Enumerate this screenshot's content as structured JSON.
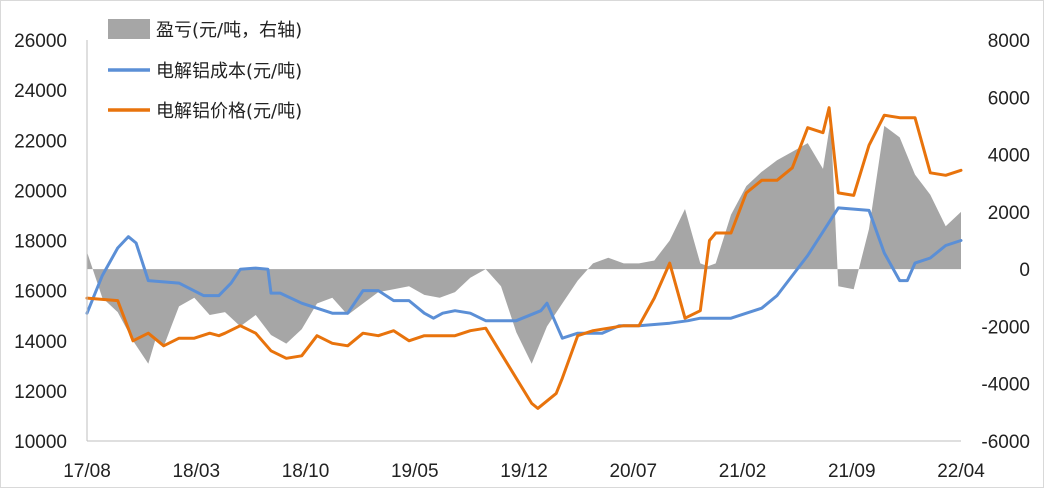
{
  "chart_data": {
    "type": "line",
    "legend": [
      {
        "label": "盈亏(元/吨，右轴)",
        "kind": "area",
        "color": "#a6a6a6"
      },
      {
        "label": "电解铝成本(元/吨)",
        "kind": "line",
        "color": "#5b8fd6"
      },
      {
        "label": "电解铝价格(元/吨)",
        "kind": "line",
        "color": "#e8730c"
      }
    ],
    "x_ticks": [
      "17/08",
      "18/03",
      "18/10",
      "19/05",
      "19/12",
      "20/07",
      "21/02",
      "21/09",
      "22/04"
    ],
    "y_left": {
      "ticks": [
        "10000",
        "12000",
        "14000",
        "16000",
        "18000",
        "20000",
        "22000",
        "24000",
        "26000"
      ],
      "min": 10000,
      "max": 26000
    },
    "y_right": {
      "ticks": [
        "-6000",
        "-4000",
        "-2000",
        "0",
        "2000",
        "4000",
        "6000",
        "8000"
      ],
      "min": -6000,
      "max": 8000
    },
    "x_range": [
      0,
      57
    ],
    "series": [
      {
        "name": "电解铝成本(元/吨)",
        "axis": "left",
        "color": "#5b8fd6",
        "x": [
          0,
          1,
          2,
          2.7,
          3.2,
          4,
          6,
          7.6,
          8.6,
          9.4,
          10,
          11,
          11.8,
          12,
          12.6,
          14,
          16,
          17,
          18,
          19,
          20,
          21,
          22,
          22.6,
          23.2,
          24,
          25,
          26,
          28,
          29.6,
          30,
          31,
          32,
          33.6,
          34.7,
          36,
          37,
          38,
          39.2,
          40,
          42,
          44,
          45,
          47,
          49,
          51,
          52,
          53,
          53.5,
          54,
          55,
          56,
          57
        ],
        "values": [
          15100,
          16600,
          17700,
          18150,
          17900,
          16400,
          16300,
          15800,
          15800,
          16300,
          16850,
          16900,
          16850,
          15900,
          15900,
          15500,
          15100,
          15100,
          16000,
          16000,
          15600,
          15600,
          15100,
          14900,
          15100,
          15200,
          15100,
          14800,
          14800,
          15200,
          15500,
          14100,
          14300,
          14300,
          14600,
          14600,
          14650,
          14700,
          14800,
          14900,
          14900,
          15300,
          15800,
          17400,
          19300,
          19200,
          17500,
          16400,
          16400,
          17100,
          17300,
          17800,
          18000
        ]
      },
      {
        "name": "电解铝价格(元/吨)",
        "axis": "left",
        "color": "#e8730c",
        "x": [
          0,
          2,
          3,
          4,
          5,
          6,
          7,
          8,
          8.6,
          9,
          10,
          11,
          12,
          13,
          14,
          15,
          16,
          17,
          18,
          19,
          20,
          21,
          22,
          23,
          24,
          25,
          26,
          27,
          28,
          29,
          29.4,
          30,
          30.6,
          31,
          32,
          33,
          34,
          35,
          36,
          37,
          38,
          39,
          40,
          40.6,
          41,
          42,
          43,
          44,
          45,
          46,
          47,
          48,
          48.4,
          49,
          50,
          51,
          52,
          53,
          54,
          55,
          56,
          57
        ],
        "values": [
          15700,
          15600,
          14000,
          14300,
          13800,
          14100,
          14100,
          14300,
          14200,
          14300,
          14600,
          14300,
          13600,
          13300,
          13400,
          14200,
          13900,
          13800,
          14300,
          14200,
          14400,
          14000,
          14200,
          14200,
          14200,
          14400,
          14500,
          13500,
          12500,
          11500,
          11300,
          11600,
          11900,
          12500,
          14200,
          14400,
          14500,
          14600,
          14600,
          15700,
          17100,
          14900,
          15200,
          18000,
          18300,
          18300,
          19900,
          20400,
          20400,
          20900,
          22500,
          22300,
          23300,
          19900,
          19800,
          21800,
          23000,
          22900,
          22900,
          20700,
          20600,
          20800
        ]
      },
      {
        "name": "盈亏(元/吨，右轴)",
        "axis": "right",
        "color": "#a6a6a6",
        "x": [
          0,
          1,
          2,
          3,
          4,
          4.5,
          5,
          5.5,
          6,
          7,
          8,
          9,
          10,
          11,
          12,
          13,
          14,
          15,
          16,
          17,
          18,
          19,
          20,
          21,
          22,
          23,
          24,
          25,
          26,
          27,
          28,
          29,
          30,
          31,
          32,
          33,
          34,
          35,
          36,
          37,
          38,
          39,
          40,
          40.5,
          41,
          42,
          43,
          44,
          45,
          46,
          47,
          48,
          48.5,
          49,
          50,
          51,
          52,
          53,
          54,
          55,
          56,
          57
        ],
        "values": [
          600,
          -1000,
          -1500,
          -2500,
          -3300,
          -2400,
          -2700,
          -2000,
          -1300,
          -1000,
          -1600,
          -1500,
          -2000,
          -1600,
          -2300,
          -2600,
          -2100,
          -1200,
          -1000,
          -1600,
          -1200,
          -800,
          -700,
          -600,
          -900,
          -1000,
          -800,
          -300,
          0,
          -600,
          -2200,
          -3300,
          -2000,
          -1200,
          -400,
          200,
          400,
          200,
          200,
          300,
          1000,
          2100,
          200,
          100,
          200,
          1900,
          2900,
          3400,
          3800,
          4100,
          4400,
          3500,
          5200,
          -600,
          -700,
          1400,
          5000,
          4600,
          3300,
          2600,
          1500,
          2000
        ]
      }
    ],
    "grid": false
  }
}
